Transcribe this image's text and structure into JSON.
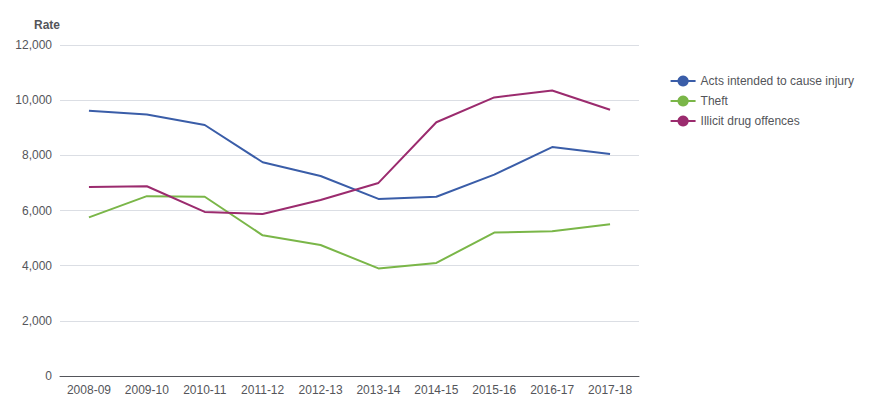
{
  "chart_data": {
    "type": "line",
    "ylabel": "Rate",
    "categories": [
      "2008-09",
      "2009-10",
      "2010-11",
      "2011-12",
      "2012-13",
      "2013-14",
      "2014-15",
      "2015-16",
      "2016-17",
      "2017-18"
    ],
    "series": [
      {
        "name": "Acts intended to cause injury",
        "color": "#3a5da8",
        "values": [
          9620,
          9480,
          9100,
          7750,
          7250,
          6420,
          6500,
          7300,
          8300,
          8050
        ]
      },
      {
        "name": "Theft",
        "color": "#7ab648",
        "values": [
          5750,
          6520,
          6500,
          5100,
          4750,
          3900,
          4100,
          5200,
          5250,
          5500
        ]
      },
      {
        "name": "Illicit drug offences",
        "color": "#9b2b6e",
        "values": [
          6850,
          6880,
          5950,
          5870,
          6380,
          7000,
          9200,
          10100,
          10350,
          9650
        ]
      }
    ],
    "ylim": [
      0,
      12000
    ],
    "yticks": [
      0,
      {
        "value": 2000,
        "label": "2,000"
      },
      {
        "value": 4000,
        "label": "4,000"
      },
      {
        "value": 6000,
        "label": "6,000"
      },
      {
        "value": 8000,
        "label": "8,000"
      },
      {
        "value": 10000,
        "label": "10,000"
      },
      {
        "value": 12000,
        "label": "12,000"
      }
    ],
    "grid": true,
    "legend": "right"
  }
}
